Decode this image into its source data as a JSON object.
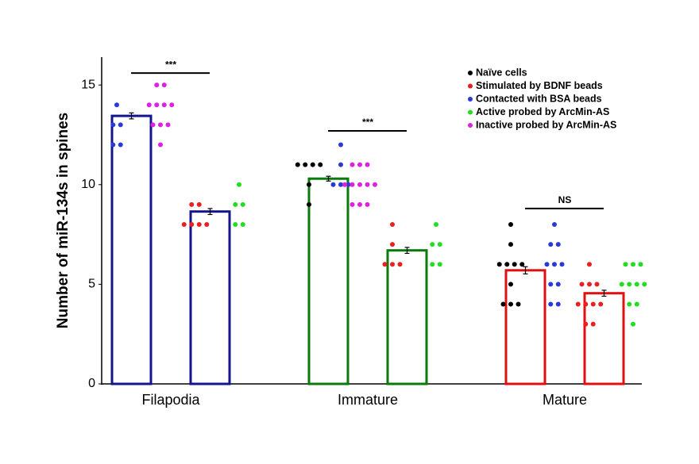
{
  "chart_data": {
    "type": "bar",
    "y_label": "Number of miR-134s in spines",
    "ylim": [
      0,
      16.4
    ],
    "yticks": [
      0,
      5,
      10,
      15
    ],
    "categories": [
      "Filapodia",
      "Immature",
      "Mature"
    ],
    "bars": [
      {
        "color": "#14148c",
        "value": 13.45,
        "error": 0.15
      },
      {
        "color": "#14148c",
        "value": 8.65,
        "error": 0.15
      },
      {
        "color": "#0a7a0a",
        "value": 10.3,
        "error": 0.12
      },
      {
        "color": "#0a7a0a",
        "value": 6.7,
        "error": 0.15
      },
      {
        "color": "#e01010",
        "value": 5.7,
        "error": 0.18
      },
      {
        "color": "#e01010",
        "value": 4.55,
        "error": 0.15
      }
    ],
    "series": [
      {
        "name": "Naïve cells",
        "color": "#000000",
        "values": [
          [],
          [],
          [
            11,
            11,
            11,
            11,
            10,
            9
          ],
          [],
          [
            8,
            7,
            6,
            6,
            6,
            6,
            5,
            4,
            4,
            4
          ],
          []
        ]
      },
      {
        "name": "Stimulated by BDNF beads",
        "color": "#e8201f",
        "values": [
          [],
          [
            9,
            9,
            8,
            8,
            8,
            8
          ],
          [],
          [
            8,
            7,
            6,
            6,
            6
          ],
          [],
          [
            6,
            5,
            5,
            5,
            4,
            4,
            4,
            4,
            3,
            3
          ]
        ]
      },
      {
        "name": "Contacted with BSA beads",
        "color": "#2a3ad8",
        "values": [
          [
            14,
            13,
            13,
            12,
            12
          ],
          [],
          [
            12,
            11,
            10,
            10,
            10
          ],
          [],
          [
            8,
            7,
            7,
            6,
            6,
            6,
            5,
            5,
            4,
            4
          ],
          []
        ]
      },
      {
        "name": "Active probed by ArcMin-AS",
        "color": "#22dd22",
        "values": [
          [],
          [
            10,
            9,
            9,
            8,
            8
          ],
          [],
          [
            8,
            7,
            7,
            6,
            6
          ],
          [],
          [
            6,
            6,
            6,
            5,
            5,
            5,
            5,
            4,
            4,
            3
          ]
        ]
      },
      {
        "name": "Inactive probed by ArcMin-AS",
        "color": "#e020e0",
        "values": [
          [
            15,
            15,
            14,
            14,
            14,
            14,
            13,
            13,
            13,
            12
          ],
          [],
          [
            11,
            11,
            11,
            10,
            10,
            10,
            10,
            10,
            9,
            9,
            9
          ],
          [],
          [],
          []
        ]
      }
    ],
    "annotations": [
      {
        "text": "***",
        "y": 15.6
      },
      {
        "text": "***",
        "y": 12.7
      },
      {
        "text": "NS",
        "y": 8.8
      }
    ]
  }
}
